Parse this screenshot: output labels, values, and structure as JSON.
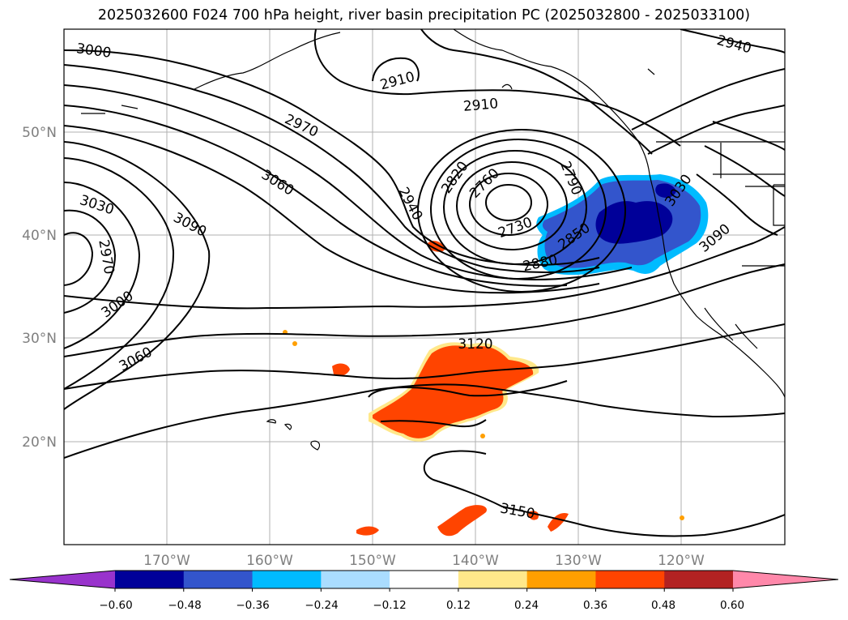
{
  "title": "2025032600 F024 700 hPa height, river basin precipitation PC (2025032800 - 2025033100)",
  "map": {
    "lat_labels": [
      "50°N",
      "40°N",
      "30°N",
      "20°N"
    ],
    "lon_labels": [
      "170°W",
      "160°W",
      "150°W",
      "140°W",
      "130°W",
      "120°W"
    ],
    "contour_labels": [
      "3000",
      "2910",
      "2910",
      "2940",
      "2970",
      "3060",
      "3030",
      "2970",
      "3090",
      "3000",
      "3060",
      "2940",
      "2820",
      "2760",
      "2790",
      "2730",
      "2850",
      "2880",
      "3030",
      "3090",
      "3120",
      "3150"
    ],
    "contour_color": "#000000",
    "grid_color": "#b0b0b0"
  },
  "colorbar": {
    "colors": [
      "#9933cc",
      "#000099",
      "#3355cc",
      "#00bbff",
      "#aaddff",
      "#ffffff",
      "#ffe88a",
      "#ff9f00",
      "#ff4400",
      "#b22222",
      "#ff88aa"
    ],
    "tick_labels": [
      "−0.60",
      "−0.48",
      "−0.36",
      "−0.24",
      "−0.12",
      "0.12",
      "0.24",
      "0.36",
      "0.48",
      "0.60"
    ]
  }
}
